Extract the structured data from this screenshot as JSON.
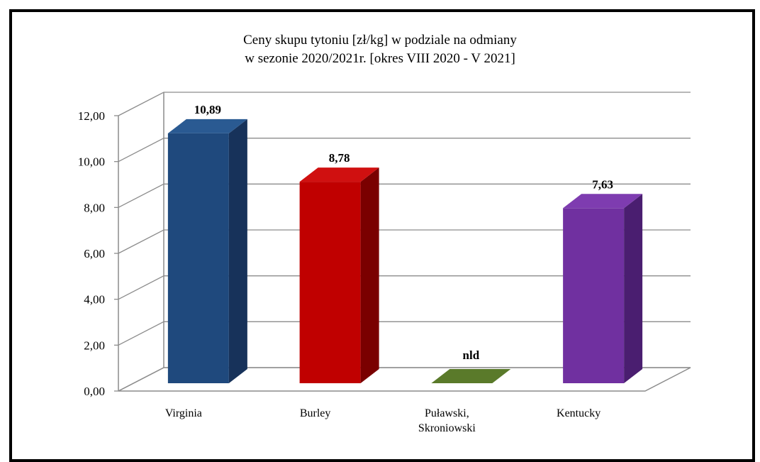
{
  "chart_data": {
    "type": "bar",
    "title_lines": [
      "Ceny skupu tytoniu [zł/kg] w podziale na odmiany",
      "w sezonie 2020/2021r.   [okres VIII 2020 - V 2021]"
    ],
    "categories": [
      {
        "label_lines": [
          "Virginia"
        ]
      },
      {
        "label_lines": [
          "Burley"
        ]
      },
      {
        "label_lines": [
          "Puławski,",
          "Skroniowski"
        ]
      },
      {
        "label_lines": [
          "Kentucky"
        ]
      }
    ],
    "values": [
      10.89,
      8.78,
      0,
      7.63
    ],
    "data_labels": [
      "10,89",
      "8,78",
      "nld",
      "7,63"
    ],
    "bar_colors": [
      {
        "front": "#1F497D",
        "side": "#17325A",
        "top": "#2A5A92"
      },
      {
        "front": "#C00000",
        "side": "#7A0000",
        "top": "#D01010"
      },
      {
        "front": "#5A7A2A",
        "side": "#3F5A1B",
        "top": "#5A7A2A"
      },
      {
        "front": "#7030A0",
        "side": "#4A1E70",
        "top": "#7E3CB0"
      }
    ],
    "y_ticks": [
      "0,00",
      "2,00",
      "4,00",
      "6,00",
      "8,00",
      "10,00",
      "12,00"
    ],
    "ylim": [
      0,
      12
    ],
    "grid": true,
    "three_d": true
  }
}
